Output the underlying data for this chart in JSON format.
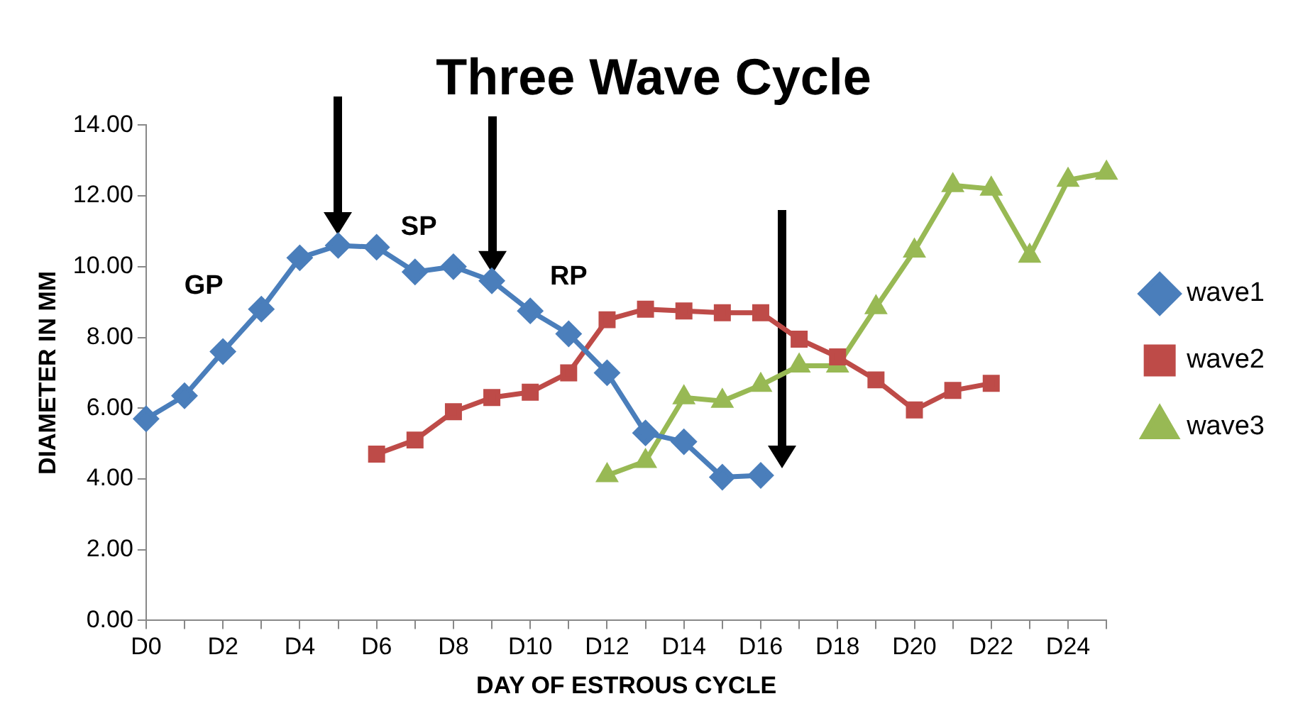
{
  "chart_data": {
    "type": "line",
    "title": "Three Wave Cycle",
    "xlabel": "DAY OF ESTROUS CYCLE",
    "ylabel": "DIAMETER IN MM",
    "categories": [
      "D0",
      null,
      "D2",
      null,
      "D4",
      null,
      "D6",
      null,
      "D8",
      null,
      "D10",
      null,
      "D12",
      null,
      "D14",
      null,
      "D16",
      null,
      "D18",
      null,
      "D20",
      null,
      "D22",
      null,
      "D24",
      null
    ],
    "series": [
      {
        "name": "wave1",
        "color": "#4a7ebb",
        "marker": "diamond",
        "values": [
          5.7,
          6.35,
          7.6,
          8.8,
          10.25,
          10.6,
          10.55,
          9.85,
          10.0,
          9.6,
          8.75,
          8.1,
          7.0,
          5.3,
          5.05,
          4.05,
          4.1,
          null,
          null,
          null,
          null,
          null,
          null,
          null,
          null,
          null
        ]
      },
      {
        "name": "wave2",
        "color": "#be4b48",
        "marker": "square",
        "values": [
          null,
          null,
          null,
          null,
          null,
          null,
          4.7,
          5.1,
          5.9,
          6.3,
          6.45,
          7.0,
          8.5,
          8.8,
          8.75,
          8.7,
          8.7,
          7.95,
          7.45,
          6.8,
          5.95,
          6.5,
          6.7,
          null,
          null,
          null
        ]
      },
      {
        "name": "wave3",
        "color": "#98b954",
        "marker": "triangle",
        "values": [
          null,
          null,
          null,
          null,
          null,
          null,
          null,
          null,
          null,
          null,
          null,
          null,
          4.1,
          4.5,
          6.3,
          6.2,
          6.65,
          7.2,
          7.2,
          8.85,
          10.45,
          12.3,
          12.2,
          10.3,
          12.45,
          12.65
        ]
      }
    ],
    "ylim": [
      0,
      14
    ],
    "yticks": [
      {
        "value": 0,
        "label": "0.00"
      },
      {
        "value": 2,
        "label": "2.00"
      },
      {
        "value": 4,
        "label": "4.00"
      },
      {
        "value": 6,
        "label": "6.00"
      },
      {
        "value": 8,
        "label": "8.00"
      },
      {
        "value": 10,
        "label": "10.00"
      },
      {
        "value": 12,
        "label": "12.00"
      },
      {
        "value": 14,
        "label": "14.00"
      }
    ],
    "grid": false,
    "legend": "right",
    "annotations": [
      "GP",
      "SP",
      "RP"
    ]
  }
}
